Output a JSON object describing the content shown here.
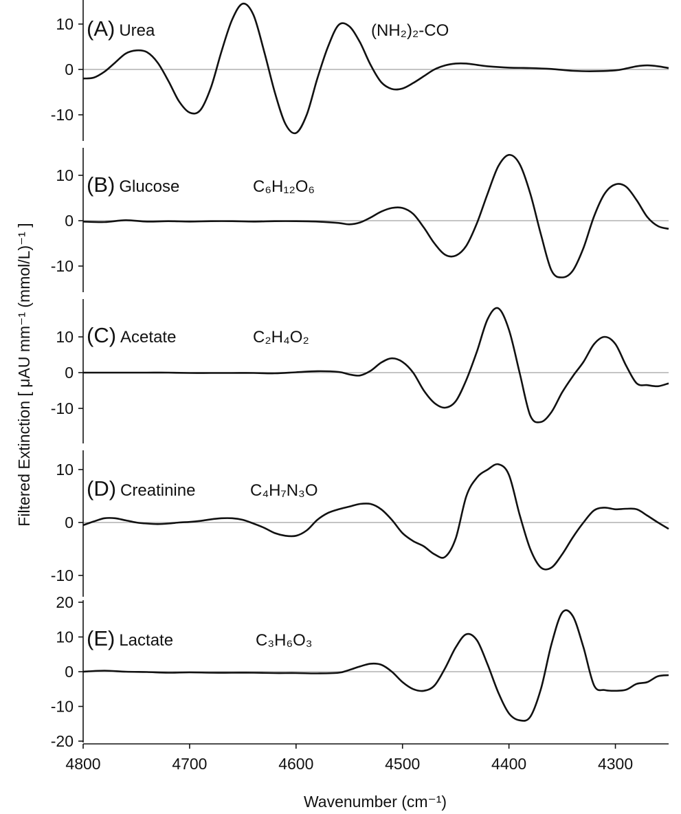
{
  "chart_data": {
    "type": "line",
    "ylabel": "Filtered Extinction [ μAU mm⁻¹ (mmol/L)⁻¹ ]",
    "xlabel": "Wavenumber (cm⁻¹)",
    "x_ticks": [
      4800,
      4700,
      4600,
      4500,
      4400,
      4300
    ],
    "xlim": [
      4800,
      4250
    ],
    "grid": false,
    "zero_line": true,
    "line_color": "#111111",
    "zero_line_color": "#b0b0b0",
    "panels": [
      {
        "letter": "(A)",
        "name": "Urea",
        "formula": "(NH₂)₂-CO",
        "ylim": [
          -14,
          15
        ],
        "y_ticks": [
          10,
          0,
          -10
        ],
        "series": {
          "x": [
            4800,
            4790,
            4780,
            4770,
            4760,
            4750,
            4740,
            4730,
            4720,
            4710,
            4700,
            4690,
            4680,
            4670,
            4660,
            4650,
            4640,
            4630,
            4620,
            4610,
            4600,
            4590,
            4580,
            4570,
            4560,
            4550,
            4540,
            4530,
            4520,
            4510,
            4500,
            4490,
            4480,
            4470,
            4460,
            4450,
            4440,
            4430,
            4420,
            4400,
            4380,
            4360,
            4340,
            4320,
            4300,
            4290,
            4280,
            4270,
            4260,
            4250
          ],
          "y": [
            -2,
            -1.8,
            -0.5,
            1.5,
            3.5,
            4.2,
            3.8,
            1.5,
            -2.5,
            -7,
            -9.5,
            -9,
            -4,
            4,
            11,
            14.5,
            12,
            4,
            -5,
            -12,
            -14,
            -10,
            -2,
            5,
            9.8,
            9.5,
            6,
            1,
            -2.8,
            -4.3,
            -4.2,
            -3,
            -1.5,
            0,
            0.9,
            1.3,
            1.3,
            1.0,
            0.7,
            0.4,
            0.3,
            0.1,
            -0.3,
            -0.4,
            -0.2,
            0.2,
            0.7,
            0.9,
            0.7,
            0.3
          ]
        }
      },
      {
        "letter": "(B)",
        "name": "Glucose",
        "formula": "C₆H₁₂O₆",
        "ylim": [
          -16,
          16
        ],
        "y_ticks": [
          10,
          0,
          -10
        ],
        "series": {
          "x": [
            4800,
            4780,
            4760,
            4740,
            4720,
            4700,
            4680,
            4660,
            4640,
            4620,
            4600,
            4580,
            4560,
            4550,
            4540,
            4530,
            4520,
            4510,
            4500,
            4490,
            4480,
            4470,
            4460,
            4450,
            4440,
            4430,
            4420,
            4410,
            4400,
            4390,
            4380,
            4370,
            4360,
            4350,
            4340,
            4330,
            4320,
            4310,
            4300,
            4290,
            4280,
            4270,
            4260,
            4250
          ],
          "y": [
            -0.2,
            -0.3,
            0.1,
            -0.2,
            -0.1,
            -0.2,
            -0.1,
            -0.1,
            -0.2,
            -0.1,
            -0.1,
            -0.2,
            -0.5,
            -0.8,
            -0.4,
            0.7,
            2,
            2.8,
            2.8,
            1.5,
            -1.5,
            -5,
            -7.5,
            -7.7,
            -5.5,
            -0.5,
            6,
            12,
            14.5,
            12.5,
            6,
            -3,
            -11,
            -12.5,
            -11,
            -6,
            1,
            6,
            8,
            7.5,
            4.5,
            0.8,
            -1.2,
            -1.8
          ]
        }
      },
      {
        "letter": "(C)",
        "name": "Acetate",
        "formula": "C₂H₄O₂",
        "ylim": [
          -15,
          19
        ],
        "y_ticks": [
          10,
          0,
          -10
        ],
        "series": {
          "x": [
            4800,
            4780,
            4760,
            4740,
            4720,
            4700,
            4680,
            4660,
            4640,
            4620,
            4600,
            4580,
            4560,
            4550,
            4540,
            4530,
            4520,
            4510,
            4500,
            4490,
            4480,
            4470,
            4460,
            4450,
            4440,
            4430,
            4420,
            4410,
            4400,
            4390,
            4380,
            4370,
            4360,
            4350,
            4340,
            4330,
            4320,
            4310,
            4300,
            4290,
            4280,
            4270,
            4260,
            4250
          ],
          "y": [
            0,
            0,
            0,
            0,
            0,
            -0.1,
            -0.1,
            -0.1,
            -0.1,
            -0.2,
            0.1,
            0.4,
            0.2,
            -0.5,
            -0.8,
            0.5,
            2.8,
            4,
            3,
            0,
            -5,
            -8.5,
            -9.8,
            -8,
            -2,
            6,
            15,
            18,
            12,
            0,
            -12,
            -13.8,
            -11,
            -5.5,
            -1,
            3,
            8,
            10,
            8,
            2,
            -3,
            -3.5,
            -3.8,
            -3
          ]
        }
      },
      {
        "letter": "(D)",
        "name": "Creatinine",
        "formula": "C₄H₇N₃O",
        "ylim": [
          -13,
          14
        ],
        "y_ticks": [
          10,
          0,
          -10
        ],
        "series": {
          "x": [
            4800,
            4790,
            4780,
            4770,
            4760,
            4750,
            4740,
            4730,
            4720,
            4710,
            4700,
            4690,
            4680,
            4670,
            4660,
            4650,
            4640,
            4630,
            4620,
            4610,
            4600,
            4590,
            4580,
            4570,
            4560,
            4550,
            4540,
            4530,
            4520,
            4510,
            4500,
            4490,
            4480,
            4470,
            4460,
            4450,
            4440,
            4430,
            4420,
            4410,
            4400,
            4390,
            4380,
            4370,
            4360,
            4350,
            4340,
            4330,
            4320,
            4310,
            4300,
            4290,
            4280,
            4270,
            4260,
            4250
          ],
          "y": [
            -0.5,
            0.2,
            0.8,
            0.8,
            0.4,
            0,
            -0.2,
            -0.3,
            -0.2,
            0,
            0.1,
            0.3,
            0.6,
            0.8,
            0.8,
            0.5,
            -0.2,
            -1,
            -2,
            -2.5,
            -2.5,
            -1.5,
            0.5,
            1.8,
            2.5,
            3,
            3.5,
            3.5,
            2.5,
            0.5,
            -2,
            -3.5,
            -4.5,
            -6,
            -6.5,
            -3,
            5,
            8.5,
            10,
            11,
            9,
            1.5,
            -5,
            -8.5,
            -8.5,
            -6,
            -2.8,
            0,
            2.3,
            2.8,
            2.5,
            2.6,
            2.5,
            1.3,
            0,
            -1.2
          ]
        }
      },
      {
        "letter": "(E)",
        "name": "Lactate",
        "formula": "C₃H₆O₃",
        "ylim": [
          -21,
          22
        ],
        "y_ticks": [
          20,
          10,
          0,
          -10,
          -20
        ],
        "series": {
          "x": [
            4800,
            4780,
            4760,
            4740,
            4720,
            4700,
            4680,
            4660,
            4640,
            4620,
            4600,
            4580,
            4560,
            4550,
            4540,
            4530,
            4520,
            4510,
            4500,
            4490,
            4480,
            4470,
            4460,
            4450,
            4440,
            4430,
            4420,
            4410,
            4400,
            4390,
            4380,
            4370,
            4360,
            4350,
            4340,
            4330,
            4320,
            4310,
            4300,
            4290,
            4280,
            4270,
            4260,
            4250
          ],
          "y": [
            0,
            0.3,
            0,
            -0.1,
            -0.3,
            -0.2,
            -0.3,
            -0.3,
            -0.3,
            -0.4,
            -0.4,
            -0.5,
            -0.3,
            0.5,
            1.5,
            2.3,
            2,
            0,
            -3,
            -5,
            -5.5,
            -4,
            1,
            7,
            10.8,
            9,
            2,
            -6,
            -12,
            -14,
            -13,
            -5,
            8,
            17,
            16,
            7,
            -4,
            -5.3,
            -5.5,
            -5.2,
            -3.5,
            -3,
            -1.3,
            -1
          ]
        }
      }
    ]
  }
}
